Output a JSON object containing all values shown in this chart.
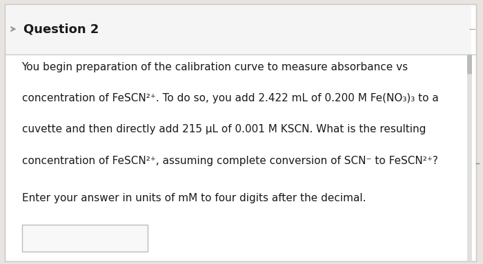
{
  "bg_color": "#e8e4e0",
  "card_color": "#ffffff",
  "header_text": "Question 2",
  "header_fontsize": 13,
  "body_lines": [
    "You begin preparation of the calibration curve to measure absorbance vs",
    "concentration of FeSCN²⁺. To do so, you add 2.422 mL of 0.200 M Fe(NO₃)₃ to a",
    "cuvette and then directly add 215 μL of 0.001 M KSCN. What is the resulting",
    "concentration of FeSCN²⁺, assuming complete conversion of SCN⁻ to FeSCN²⁺?"
  ],
  "footer_line": "Enter your answer in units of mM to four digits after the decimal.",
  "body_fontsize": 11,
  "text_color": "#1a1a1a",
  "input_box_color": "#f8f8f8",
  "input_box_border": "#bbbbbb",
  "header_bg": "#f5f5f5",
  "line_color": "#cccccc",
  "scrollbar_color": "#bbbbbb",
  "arrow_color": "#999999"
}
